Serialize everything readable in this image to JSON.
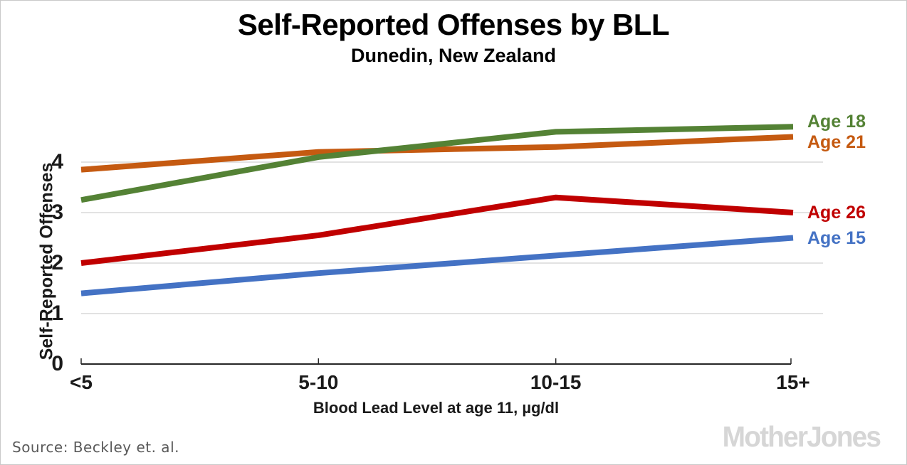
{
  "title": "Self-Reported Offenses by BLL",
  "subtitle": "Dunedin, New Zealand",
  "source": "Source: Beckley et. al.",
  "branding": "MotherJones",
  "colors": {
    "age15_blue": "#4472C4",
    "age26_red": "#C00000",
    "age21_orange": "#C55A11",
    "age18_green": "#548235",
    "gridline": "#D9D9D9",
    "axis": "#262626",
    "source_text": "#595959",
    "logo_gray": "#D6D6D6"
  },
  "chart_data": {
    "type": "line",
    "title": "Self-Reported Offenses by BLL",
    "subtitle": "Dunedin, New Zealand",
    "categories": [
      "<5",
      "5-10",
      "10-15",
      "15+"
    ],
    "xlabel": "Blood Lead Level at age 11, µg/dl",
    "ylabel": "Self-Reported Offenses",
    "yticks": [
      0,
      1,
      2,
      3,
      4
    ],
    "ylim": [
      0,
      4.8
    ],
    "grid": "horizontal-only",
    "legend_position": "right of line ends",
    "series": [
      {
        "name": "Age 15",
        "color": "#4472C4",
        "values": [
          1.4,
          1.8,
          2.15,
          2.5
        ]
      },
      {
        "name": "Age 26",
        "color": "#C00000",
        "values": [
          2.0,
          2.55,
          3.3,
          3.0
        ]
      },
      {
        "name": "Age 21",
        "color": "#C55A11",
        "values": [
          3.85,
          4.2,
          4.3,
          4.5
        ]
      },
      {
        "name": "Age 18",
        "color": "#548235",
        "values": [
          3.25,
          4.1,
          4.6,
          4.7
        ]
      }
    ]
  }
}
